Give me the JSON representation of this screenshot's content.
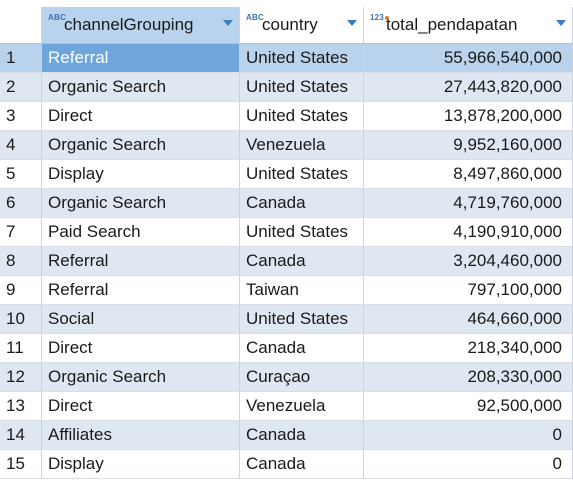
{
  "columns": [
    {
      "name": "channelGrouping",
      "type_badge": "ABC"
    },
    {
      "name": "country",
      "type_badge": "ABC"
    },
    {
      "name": "total_pendapatan",
      "type_badge": "123"
    }
  ],
  "rows": [
    {
      "n": "1",
      "channel": "Referral",
      "country": "United States",
      "total": "55,966,540,000"
    },
    {
      "n": "2",
      "channel": "Organic Search",
      "country": "United States",
      "total": "27,443,820,000"
    },
    {
      "n": "3",
      "channel": "Direct",
      "country": "United States",
      "total": "13,878,200,000"
    },
    {
      "n": "4",
      "channel": "Organic Search",
      "country": "Venezuela",
      "total": "9,952,160,000"
    },
    {
      "n": "5",
      "channel": "Display",
      "country": "United States",
      "total": "8,497,860,000"
    },
    {
      "n": "6",
      "channel": "Organic Search",
      "country": "Canada",
      "total": "4,719,760,000"
    },
    {
      "n": "7",
      "channel": "Paid Search",
      "country": "United States",
      "total": "4,190,910,000"
    },
    {
      "n": "8",
      "channel": "Referral",
      "country": "Canada",
      "total": "3,204,460,000"
    },
    {
      "n": "9",
      "channel": "Referral",
      "country": "Taiwan",
      "total": "797,100,000"
    },
    {
      "n": "10",
      "channel": "Social",
      "country": "United States",
      "total": "464,660,000"
    },
    {
      "n": "11",
      "channel": "Direct",
      "country": "Canada",
      "total": "218,340,000"
    },
    {
      "n": "12",
      "channel": "Organic Search",
      "country": "Curaçao",
      "total": "208,330,000"
    },
    {
      "n": "13",
      "channel": "Direct",
      "country": "Venezuela",
      "total": "92,500,000"
    },
    {
      "n": "14",
      "channel": "Affiliates",
      "country": "Canada",
      "total": "0"
    },
    {
      "n": "15",
      "channel": "Display",
      "country": "Canada",
      "total": "0"
    }
  ],
  "selected_row": 0,
  "colors": {
    "selected_cell": "#6ea6dc",
    "selected_row": "#b9d3ec",
    "stripe": "#dfe7f2"
  }
}
